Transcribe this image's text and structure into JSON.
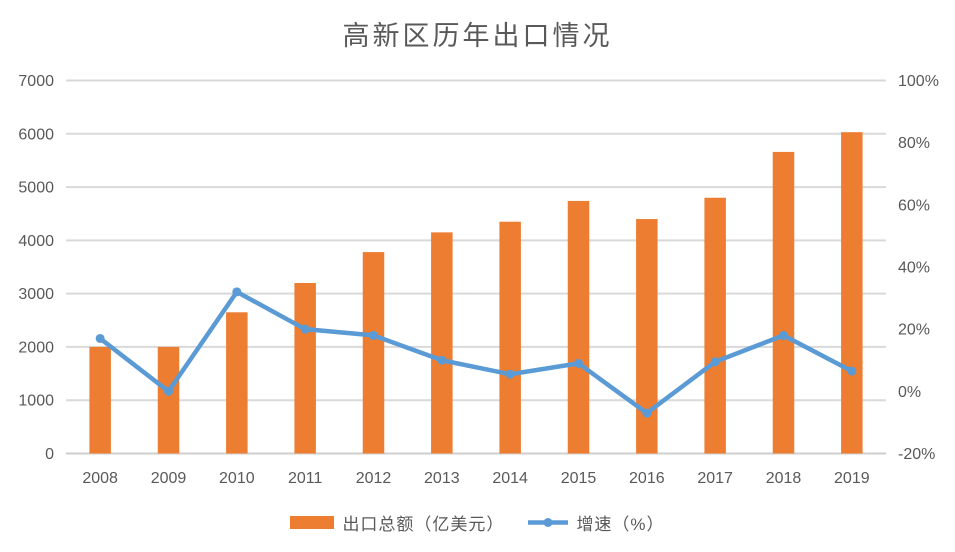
{
  "title": "高新区历年出口情况",
  "chart_data": {
    "type": "combo-bar-line",
    "title": "高新区历年出口情况",
    "categories": [
      "2008",
      "2009",
      "2010",
      "2011",
      "2012",
      "2013",
      "2014",
      "2015",
      "2016",
      "2017",
      "2018",
      "2019"
    ],
    "series": [
      {
        "name": "出口总额（亿美元）",
        "type": "bar",
        "axis": "left",
        "color": "#ED7D31",
        "values": [
          2000,
          2000,
          2650,
          3200,
          3780,
          4150,
          4350,
          4740,
          4400,
          4800,
          5660,
          6030
        ]
      },
      {
        "name": "增速（%）",
        "type": "line",
        "axis": "right",
        "color": "#5B9BD5",
        "values": [
          17,
          0,
          32,
          20,
          18,
          10,
          5.5,
          9,
          -7,
          9.5,
          18,
          6.5
        ]
      }
    ],
    "left_axis": {
      "min": 0,
      "max": 7000,
      "step": 1000,
      "ticks": [
        "0",
        "1000",
        "2000",
        "3000",
        "4000",
        "5000",
        "6000",
        "7000"
      ]
    },
    "right_axis": {
      "min": -20,
      "max": 100,
      "step": 20,
      "ticks": [
        "-20%",
        "0%",
        "20%",
        "40%",
        "60%",
        "80%",
        "100%"
      ]
    },
    "grid": "horizontal",
    "legend_position": "bottom"
  },
  "colors": {
    "bar": "#ED7D31",
    "line": "#5B9BD5",
    "gridline": "#D9D9D9",
    "axis_line": "#D0CECE",
    "text": "#595959"
  }
}
